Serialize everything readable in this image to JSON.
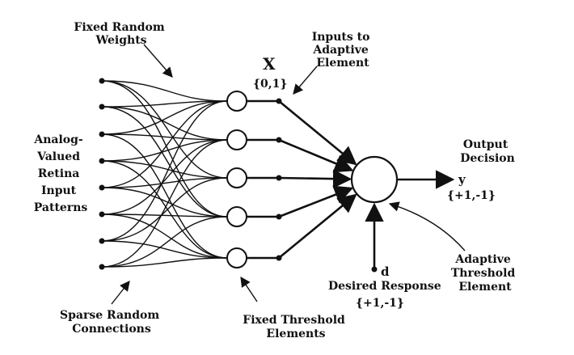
{
  "diagram": {
    "labels": {
      "fixed_random_weights": [
        "Fixed Random",
        "Weights"
      ],
      "inputs_to_adaptive": [
        "Inputs to",
        "Adaptive",
        "Element"
      ],
      "x_symbol": "X",
      "x_range": "{0,1}",
      "analog_retina": [
        "Analog-",
        "Valued",
        "Retina",
        "Input",
        "Patterns"
      ],
      "output_decision": [
        "Output",
        "Decision"
      ],
      "y_symbol": "y",
      "y_range": "{+1,-1}",
      "d_symbol": "d",
      "desired_response": "Desired Response",
      "d_range": "{+1,-1}",
      "adaptive_threshold": [
        "Adaptive",
        "Threshold",
        "Element"
      ],
      "sparse_random": [
        "Sparse Random",
        "Connections"
      ],
      "fixed_threshold": [
        "Fixed Threshold",
        "Elements"
      ]
    },
    "connections": [
      [
        0,
        0
      ],
      [
        0,
        2
      ],
      [
        0,
        3
      ],
      [
        1,
        0
      ],
      [
        1,
        1
      ],
      [
        1,
        3
      ],
      [
        2,
        0
      ],
      [
        2,
        1
      ],
      [
        2,
        4
      ],
      [
        3,
        1
      ],
      [
        3,
        2
      ],
      [
        3,
        4
      ],
      [
        4,
        2
      ],
      [
        4,
        3
      ],
      [
        4,
        0
      ],
      [
        5,
        1
      ],
      [
        5,
        3
      ],
      [
        5,
        4
      ],
      [
        6,
        2
      ],
      [
        6,
        4
      ],
      [
        6,
        0
      ]
    ],
    "colors": {
      "ink": "#111111",
      "background": "#ffffff"
    }
  }
}
